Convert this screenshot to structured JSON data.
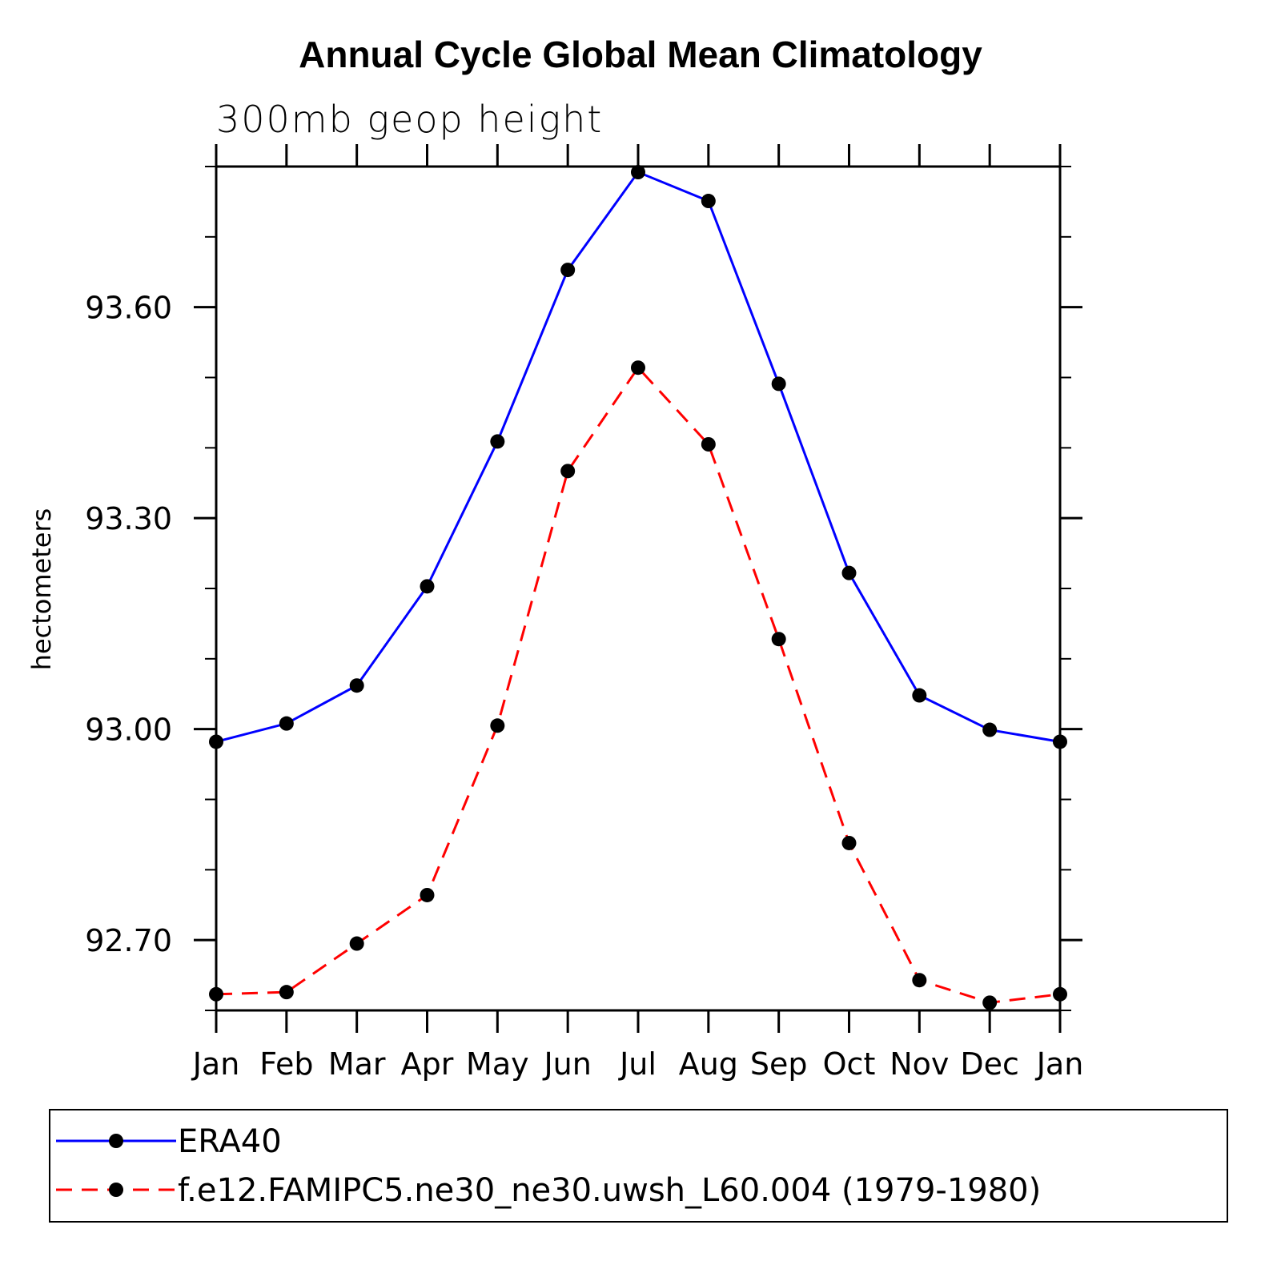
{
  "chart_data": {
    "type": "line",
    "title": "Annual Cycle Global Mean Climatology",
    "subtitle": "300mb geop height",
    "xlabel": "",
    "ylabel": "hectometers",
    "categories": [
      "Jan",
      "Feb",
      "Mar",
      "Apr",
      "May",
      "Jun",
      "Jul",
      "Aug",
      "Sep",
      "Oct",
      "Nov",
      "Dec",
      "Jan"
    ],
    "ylim": [
      92.6,
      93.8
    ],
    "yticks_major": [
      92.7,
      93.0,
      93.3,
      93.6
    ],
    "ytick_labels": [
      "92.70",
      "93.00",
      "93.30",
      "93.60"
    ],
    "yticks_minor_step": 0.1,
    "grid": false,
    "legend": "bottom",
    "series": [
      {
        "name": "ERA40",
        "color": "#0000ff",
        "dash": "solid",
        "marker": "filled-circle",
        "values": [
          92.982,
          93.008,
          93.062,
          93.203,
          93.409,
          93.653,
          93.792,
          93.751,
          93.491,
          93.222,
          93.048,
          92.999,
          92.982
        ]
      },
      {
        "name": "f.e12.FAMIPC5.ne30_ne30.uwsh_L60.004 (1979-1980)",
        "color": "#ff0000",
        "dash": "dashed",
        "marker": "filled-circle",
        "values": [
          92.623,
          92.626,
          92.695,
          92.764,
          93.005,
          93.367,
          93.514,
          93.405,
          93.128,
          92.838,
          92.643,
          92.611,
          92.623
        ]
      }
    ]
  }
}
